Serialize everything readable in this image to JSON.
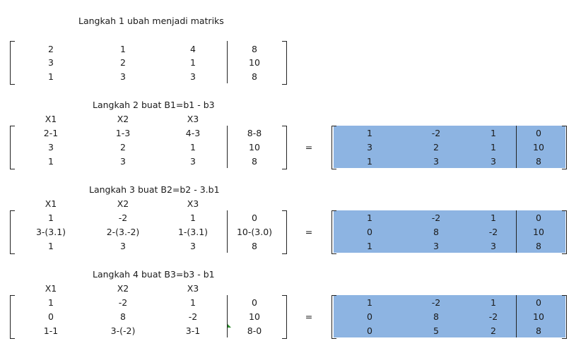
{
  "steps": [
    {
      "title": "Langkah 1 ubah menjadi matriks",
      "headers": [],
      "rows": [
        [
          "2",
          "1",
          "4",
          "8"
        ],
        [
          "3",
          "2",
          "1",
          "10"
        ],
        [
          "1",
          "3",
          "3",
          "8"
        ]
      ],
      "result": null
    },
    {
      "title": "Langkah 2 buat B1=b1 - b3",
      "headers": [
        "X1",
        "X2",
        "X3"
      ],
      "rows": [
        [
          "2-1",
          "1-3",
          "4-3",
          "8-8"
        ],
        [
          "3",
          "2",
          "1",
          "10"
        ],
        [
          "1",
          "3",
          "3",
          "8"
        ]
      ],
      "equals": "=",
      "result": [
        [
          "1",
          "-2",
          "1",
          "0"
        ],
        [
          "3",
          "2",
          "1",
          "10"
        ],
        [
          "1",
          "3",
          "3",
          "8"
        ]
      ]
    },
    {
      "title": "Langkah 3 buat B2=b2 - 3.b1",
      "headers": [
        "X1",
        "X2",
        "X3"
      ],
      "rows": [
        [
          "1",
          "-2",
          "1",
          "0"
        ],
        [
          "3-(3.1)",
          "2-(3.-2)",
          "1-(3.1)",
          "10-(3.0)"
        ],
        [
          "1",
          "3",
          "3",
          "8"
        ]
      ],
      "equals": "=",
      "result": [
        [
          "1",
          "-2",
          "1",
          "0"
        ],
        [
          "0",
          "8",
          "-2",
          "10"
        ],
        [
          "1",
          "3",
          "3",
          "8"
        ]
      ]
    },
    {
      "title": "Langkah 4 buat B3=b3 - b1",
      "headers": [
        "X1",
        "X2",
        "X3"
      ],
      "rows": [
        [
          "1",
          "-2",
          "1",
          "0"
        ],
        [
          "0",
          "8",
          "-2",
          "10"
        ],
        [
          "1-1",
          "3-(-2)",
          "3-1",
          "8-0"
        ]
      ],
      "equals": "=",
      "result": [
        [
          "1",
          "-2",
          "1",
          "0"
        ],
        [
          "0",
          "8",
          "-2",
          "10"
        ],
        [
          "0",
          "5",
          "2",
          "8"
        ]
      ]
    }
  ],
  "colors": {
    "highlight": "#8db4e2",
    "line": "#222222"
  }
}
